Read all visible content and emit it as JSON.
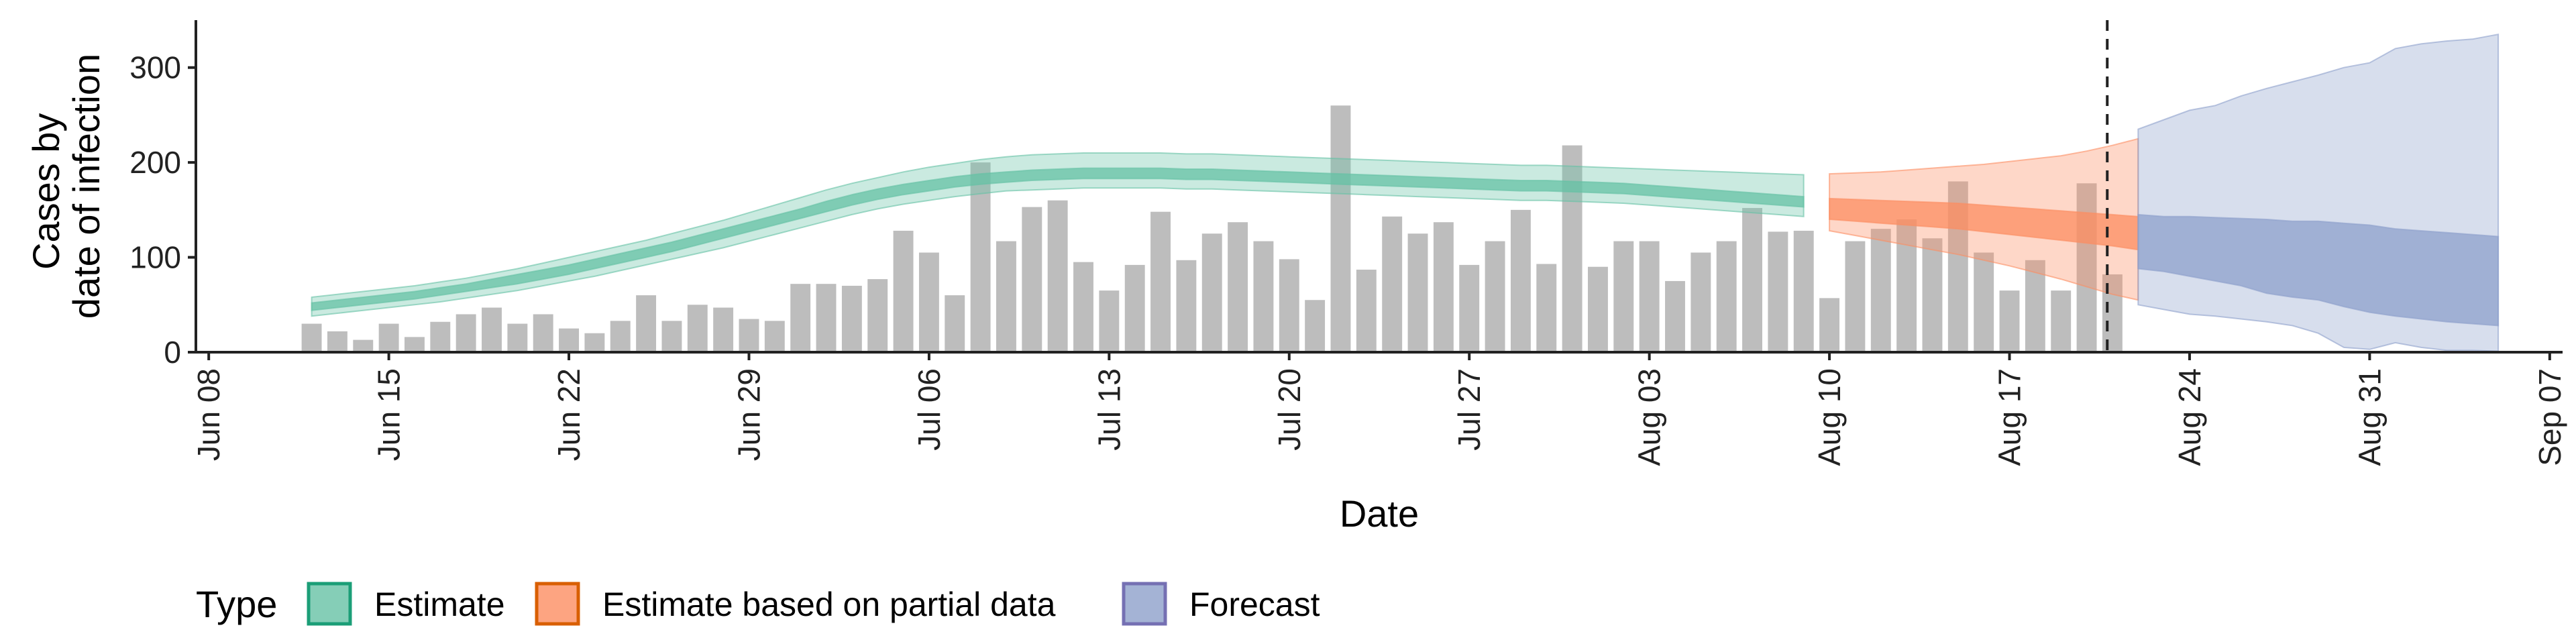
{
  "chart_data": {
    "type": "bar",
    "xlabel": "Date",
    "ylabel_lines": [
      "Cases by",
      "date of infection"
    ],
    "ylim": [
      0,
      350
    ],
    "y_ticks": [
      0,
      100,
      200,
      300
    ],
    "x_ticks": [
      {
        "label": "Jun 08",
        "day": 0
      },
      {
        "label": "Jun 15",
        "day": 7
      },
      {
        "label": "Jun 22",
        "day": 14
      },
      {
        "label": "Jun 29",
        "day": 21
      },
      {
        "label": "Jul 06",
        "day": 28
      },
      {
        "label": "Jul 13",
        "day": 35
      },
      {
        "label": "Jul 20",
        "day": 42
      },
      {
        "label": "Jul 27",
        "day": 49
      },
      {
        "label": "Aug 03",
        "day": 56
      },
      {
        "label": "Aug 10",
        "day": 63
      },
      {
        "label": "Aug 17",
        "day": 70
      },
      {
        "label": "Aug 24",
        "day": 77
      },
      {
        "label": "Aug 31",
        "day": 84
      },
      {
        "label": "Sep 07",
        "day": 91
      }
    ],
    "xlim_days": [
      -0.5,
      91.5
    ],
    "reference_line_day": 73.8,
    "bars": {
      "start_day": 4,
      "values": [
        30,
        22,
        13,
        30,
        16,
        32,
        40,
        47,
        30,
        40,
        25,
        20,
        33,
        60,
        33,
        50,
        47,
        35,
        33,
        72,
        72,
        70,
        77,
        128,
        105,
        60,
        200,
        117,
        153,
        160,
        95,
        65,
        92,
        148,
        97,
        125,
        137,
        117,
        98,
        55,
        260,
        87,
        143,
        125,
        137,
        92,
        117,
        150,
        93,
        218,
        90,
        117,
        117,
        75,
        105,
        117,
        152,
        127,
        128,
        57,
        117,
        130,
        140,
        120,
        180,
        105,
        65,
        97,
        65,
        178,
        82
      ],
      "color": "#bdbdbd"
    },
    "series": [
      {
        "name": "Estimate",
        "color": "#1b9e77",
        "fill": "#66c2a5",
        "start_day": 4,
        "outer_lower": [
          38,
          41,
          44,
          47,
          50,
          53,
          57,
          61,
          65,
          70,
          75,
          80,
          86,
          92,
          98,
          104,
          110,
          117,
          124,
          131,
          138,
          145,
          151,
          156,
          160,
          164,
          167,
          170,
          171,
          172,
          173,
          173,
          173,
          173,
          172,
          172,
          171,
          170,
          169,
          168,
          167,
          166,
          165,
          164,
          163,
          162,
          161,
          160,
          160,
          159,
          158,
          157,
          155,
          153,
          151,
          149,
          147,
          145,
          143
        ],
        "inner_lower": [
          44,
          47,
          50,
          53,
          56,
          60,
          64,
          68,
          72,
          77,
          82,
          88,
          94,
          100,
          106,
          113,
          120,
          127,
          134,
          141,
          148,
          155,
          161,
          166,
          170,
          174,
          177,
          179,
          181,
          182,
          183,
          183,
          183,
          183,
          182,
          182,
          181,
          180,
          179,
          178,
          177,
          176,
          175,
          174,
          173,
          172,
          171,
          170,
          170,
          169,
          168,
          167,
          165,
          163,
          161,
          159,
          157,
          155,
          153
        ],
        "inner_upper": [
          52,
          55,
          58,
          61,
          64,
          68,
          72,
          77,
          82,
          87,
          92,
          98,
          104,
          110,
          116,
          123,
          130,
          137,
          144,
          151,
          159,
          166,
          172,
          177,
          181,
          185,
          188,
          190,
          192,
          193,
          194,
          194,
          194,
          194,
          193,
          193,
          192,
          191,
          190,
          189,
          188,
          187,
          186,
          185,
          184,
          183,
          182,
          181,
          181,
          180,
          179,
          178,
          176,
          174,
          172,
          170,
          168,
          166,
          164
        ],
        "outer_upper": [
          58,
          61,
          64,
          67,
          70,
          74,
          78,
          83,
          88,
          94,
          100,
          106,
          112,
          118,
          125,
          132,
          139,
          147,
          155,
          163,
          171,
          178,
          184,
          190,
          195,
          199,
          203,
          206,
          208,
          209,
          210,
          210,
          210,
          210,
          209,
          209,
          208,
          207,
          206,
          205,
          204,
          203,
          202,
          201,
          200,
          199,
          198,
          197,
          197,
          196,
          195,
          194,
          193,
          192,
          191,
          190,
          189,
          188,
          187
        ]
      },
      {
        "name": "Estimate based on partial data",
        "color": "#d95f02",
        "fill": "#fc8d62",
        "start_day": 63,
        "outer_lower": [
          128,
          123,
          118,
          113,
          108,
          103,
          97,
          91,
          84,
          77,
          69,
          61,
          55
        ],
        "inner_lower": [
          140,
          138,
          136,
          134,
          132,
          130,
          127,
          124,
          121,
          118,
          115,
          112,
          108
        ],
        "inner_upper": [
          162,
          161,
          160,
          159,
          158,
          157,
          155,
          153,
          151,
          149,
          147,
          145,
          143
        ],
        "outer_upper": [
          188,
          189,
          190,
          192,
          194,
          196,
          198,
          201,
          204,
          207,
          212,
          218,
          225
        ]
      },
      {
        "name": "Forecast",
        "color": "#7570b3",
        "fill": "#8da0cb",
        "start_day": 75,
        "outer_lower": [
          50,
          45,
          40,
          38,
          35,
          32,
          28,
          20,
          5,
          3,
          10,
          5,
          2,
          2,
          1
        ],
        "inner_lower": [
          88,
          85,
          80,
          75,
          70,
          62,
          58,
          55,
          48,
          42,
          38,
          35,
          32,
          30,
          28
        ],
        "inner_upper": [
          145,
          143,
          143,
          142,
          141,
          140,
          138,
          138,
          136,
          134,
          130,
          128,
          126,
          124,
          122
        ],
        "outer_upper": [
          235,
          245,
          255,
          260,
          270,
          278,
          285,
          292,
          300,
          305,
          320,
          325,
          328,
          330,
          335
        ]
      }
    ],
    "legend": {
      "title": "Type",
      "placement": "bottom",
      "entries": [
        "Estimate",
        "Estimate based on partial data",
        "Forecast"
      ]
    }
  }
}
